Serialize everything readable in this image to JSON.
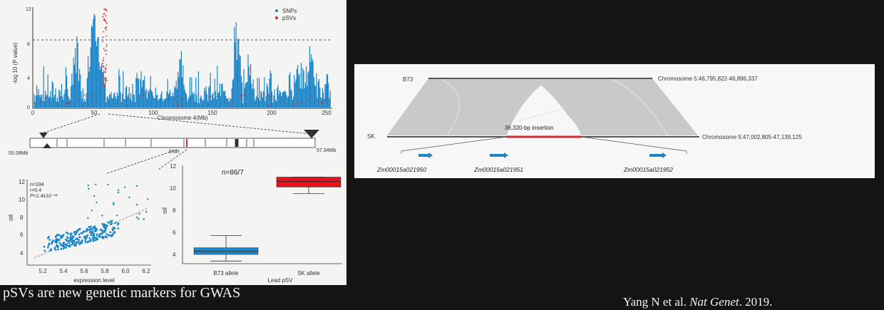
{
  "manhattan": {
    "y_label": "-log 10 (P value)",
    "x_label": "Chromosome 4(Mb)",
    "x_ticks": [
      "0",
      "50",
      "100",
      "150",
      "200",
      "250"
    ],
    "y_ticks": [
      "0",
      "4",
      "8",
      "12"
    ],
    "legend": [
      {
        "label": "SNPs",
        "color": "#1d86c8"
      },
      {
        "label": "pSVs",
        "color": "#d8262e"
      }
    ]
  },
  "region_track": {
    "left_label": "55.09Mb",
    "right_label": "57.34Mb",
    "gene_label": "ENR"
  },
  "scatter": {
    "annotation": {
      "n": "n=334",
      "r": "r=0.4",
      "p": "P=1.4x10⁻¹⁴"
    },
    "x_label": "expression level",
    "y_label": "oil",
    "x_ticks": [
      "5.2",
      "5.4",
      "5.6",
      "5.8",
      "6.0",
      "6.2"
    ],
    "y_ticks": [
      "4",
      "6",
      "8",
      "10",
      "12"
    ]
  },
  "boxplot": {
    "title": "n=86/7",
    "y_label": "oil",
    "x_label": "Lead pSV",
    "y_ticks": [
      "4",
      "6",
      "8",
      "10",
      "12"
    ],
    "groups": [
      {
        "label": "B73 allele",
        "color": "#1d86c8",
        "q1": 4.0,
        "median": 4.3,
        "q3": 4.6,
        "min": 3.4,
        "max": 5.7
      },
      {
        "label": "SK allele",
        "color": "#e8121c",
        "q1": 10.1,
        "median": 10.6,
        "q3": 11.0,
        "min": 9.5,
        "max": 11.0
      }
    ]
  },
  "synteny": {
    "top_label": "B73",
    "top_coords": "Chromosome 5:46,795,822-46,896,337",
    "bottom_label": "SK",
    "bottom_coords": "Chromosome 5:47,002,805-47,139,125",
    "insertion_label": "36,320-bp insertion",
    "genes": [
      "Zm00015a021950",
      "Zm00015a021951",
      "Zm00015a021952"
    ]
  },
  "caption": "pSVs are new genetic markers for GWAS",
  "citation": {
    "authors": "Yang N et al.",
    "journal": "Nat Genet",
    "year": ". 2019."
  }
}
